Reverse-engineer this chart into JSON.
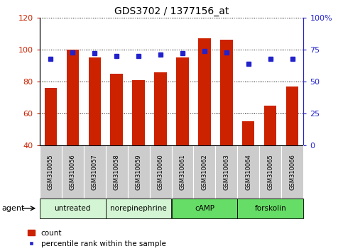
{
  "title": "GDS3702 / 1377156_at",
  "samples": [
    "GSM310055",
    "GSM310056",
    "GSM310057",
    "GSM310058",
    "GSM310059",
    "GSM310060",
    "GSM310061",
    "GSM310062",
    "GSM310063",
    "GSM310064",
    "GSM310065",
    "GSM310066"
  ],
  "counts": [
    76,
    100,
    95,
    85,
    81,
    86,
    95,
    107,
    106,
    55,
    65,
    77
  ],
  "percentiles": [
    68,
    73,
    72,
    70,
    70,
    71,
    72,
    74,
    73,
    64,
    68,
    68
  ],
  "bar_color": "#cc2200",
  "dot_color": "#2222cc",
  "ylim_left": [
    40,
    120
  ],
  "ylim_right": [
    0,
    100
  ],
  "yticks_left": [
    40,
    60,
    80,
    100,
    120
  ],
  "yticks_right": [
    0,
    25,
    50,
    75,
    100
  ],
  "yticklabels_right": [
    "0",
    "25",
    "50",
    "75",
    "100%"
  ],
  "groups": [
    {
      "label": "untreated",
      "start": 0,
      "end": 3,
      "color": "#d4f5d4"
    },
    {
      "label": "norepinephrine",
      "start": 3,
      "end": 6,
      "color": "#d4f5d4"
    },
    {
      "label": "cAMP",
      "start": 6,
      "end": 9,
      "color": "#66dd66"
    },
    {
      "label": "forskolin",
      "start": 9,
      "end": 12,
      "color": "#66dd66"
    }
  ],
  "agent_label": "agent",
  "legend_count_label": "count",
  "legend_pct_label": "percentile rank within the sample",
  "bar_bottom": 40,
  "sample_bg": "#cccccc"
}
